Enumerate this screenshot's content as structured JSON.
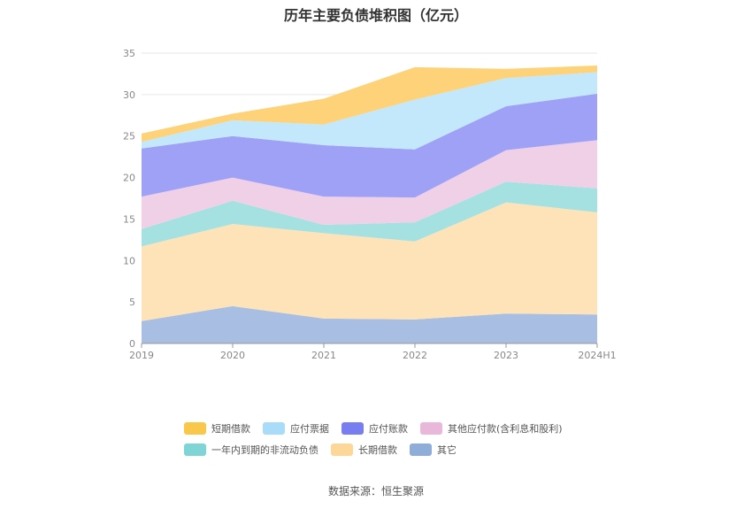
{
  "chart_data": {
    "type": "area",
    "stacked": true,
    "title": "历年主要负债堆积图（亿元）",
    "x": [
      "2019",
      "2020",
      "2021",
      "2022",
      "2023",
      "2024H1"
    ],
    "ylim": [
      0,
      35
    ],
    "yticks": [
      0,
      5,
      10,
      15,
      20,
      25,
      30,
      35
    ],
    "grid": true,
    "legend_position": "bottom",
    "series": [
      {
        "name": "其它",
        "color": "#a8bee2",
        "values": [
          2.7,
          4.5,
          3.0,
          2.9,
          3.6,
          3.5
        ]
      },
      {
        "name": "长期借款",
        "color": "#fde3b7",
        "values": [
          9.0,
          9.9,
          10.3,
          9.4,
          13.4,
          12.3
        ]
      },
      {
        "name": "一年内到期的非流动负债",
        "color": "#a6e1e2",
        "values": [
          2.1,
          2.8,
          1.0,
          2.3,
          2.5,
          2.9
        ]
      },
      {
        "name": "其他应付款(含利息和股利)",
        "color": "#f0d0e6",
        "values": [
          3.9,
          2.8,
          3.4,
          3.0,
          3.8,
          5.8
        ]
      },
      {
        "name": "应付账款",
        "color": "#9fa1f6",
        "values": [
          5.8,
          5.0,
          6.2,
          5.8,
          5.3,
          5.6
        ]
      },
      {
        "name": "应付票据",
        "color": "#c3e7fb",
        "values": [
          0.8,
          1.9,
          2.5,
          6.0,
          3.4,
          2.6
        ]
      },
      {
        "name": "短期借款",
        "color": "#fed278",
        "values": [
          1.0,
          0.8,
          3.1,
          3.9,
          1.1,
          0.8
        ]
      }
    ]
  },
  "legend": {
    "row1": [
      {
        "label": "短期借款",
        "color": "#f9c84b"
      },
      {
        "label": "应付票据",
        "color": "#a8dcf8"
      },
      {
        "label": "应付账款",
        "color": "#787df0"
      },
      {
        "label": "其他应付款(含利息和股利)",
        "color": "#e8b7d9"
      }
    ],
    "row2": [
      {
        "label": "一年内到期的非流动负债",
        "color": "#7fd5d5"
      },
      {
        "label": "长期借款",
        "color": "#fcd797"
      },
      {
        "label": "其它",
        "color": "#8fadd9"
      }
    ]
  },
  "source": "数据来源：恒生聚源"
}
